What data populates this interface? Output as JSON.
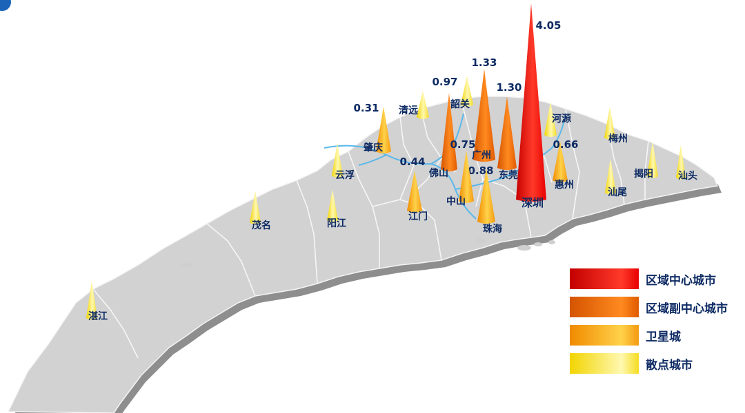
{
  "tiers": {
    "center": {
      "label": "区域中心城市",
      "grad": [
        "#c40000",
        "#ff3a2a",
        "#e80000"
      ]
    },
    "sub": {
      "label": "区域副中心城市",
      "grad": [
        "#d45400",
        "#ff8a20",
        "#e05a00"
      ]
    },
    "satellite": {
      "label": "卫星城",
      "grad": [
        "#f08a00",
        "#ffd24a",
        "#f39a10"
      ]
    },
    "scatter": {
      "label": "散点城市",
      "grad": [
        "#f2d400",
        "#fff8b0",
        "#f5dc20"
      ]
    }
  },
  "legend": [
    "center",
    "sub",
    "satellite",
    "scatter"
  ],
  "cities": [
    {
      "name": "深圳",
      "tier": "center",
      "value": "4.05"
    },
    {
      "name": "广州",
      "tier": "sub",
      "value": "1.33"
    },
    {
      "name": "东莞",
      "tier": "sub",
      "value": "1.30"
    },
    {
      "name": "佛山",
      "tier": "sub",
      "value": "0.97"
    },
    {
      "name": "珠海",
      "tier": "satellite",
      "value": "0.88"
    },
    {
      "name": "中山",
      "tier": "satellite",
      "value": "0.75"
    },
    {
      "name": "惠州",
      "tier": "satellite",
      "value": "0.66"
    },
    {
      "name": "江门",
      "tier": "satellite",
      "value": "0.44"
    },
    {
      "name": "肇庆",
      "tier": "satellite",
      "value": "0.31"
    },
    {
      "name": "清远",
      "tier": "scatter",
      "value": ""
    },
    {
      "name": "韶关",
      "tier": "scatter",
      "value": ""
    },
    {
      "name": "河源",
      "tier": "scatter",
      "value": ""
    },
    {
      "name": "梅州",
      "tier": "scatter",
      "value": ""
    },
    {
      "name": "揭阳",
      "tier": "scatter",
      "value": ""
    },
    {
      "name": "汕头",
      "tier": "scatter",
      "value": ""
    },
    {
      "name": "汕尾",
      "tier": "scatter",
      "value": ""
    },
    {
      "name": "云浮",
      "tier": "scatter",
      "value": ""
    },
    {
      "name": "阳江",
      "tier": "scatter",
      "value": ""
    },
    {
      "name": "茂名",
      "tier": "scatter",
      "value": ""
    },
    {
      "name": "湛江",
      "tier": "scatter",
      "value": ""
    }
  ]
}
